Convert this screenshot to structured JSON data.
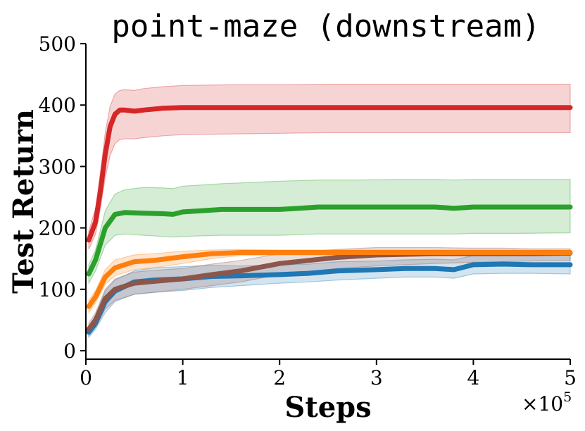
{
  "chart_data": {
    "type": "line",
    "title": "point-maze (downstream)",
    "xlabel": "Steps",
    "ylabel": "Test Return",
    "x_multiplier_label": {
      "base": "×10",
      "exponent": "5"
    },
    "xlim": [
      0,
      5
    ],
    "ylim": [
      0,
      500
    ],
    "xticks": [
      0,
      1,
      2,
      3,
      4,
      5
    ],
    "xtick_labels": [
      "0",
      "1",
      "2",
      "3",
      "4",
      "5"
    ],
    "yticks": [
      0,
      100,
      200,
      300,
      400,
      500
    ],
    "ytick_labels": [
      "0",
      "100",
      "200",
      "300",
      "400",
      "500"
    ],
    "grid": false,
    "legend": null,
    "series": [
      {
        "color": "#1f77b4",
        "x": [
          0.03,
          0.1,
          0.2,
          0.3,
          0.5,
          0.7,
          1.0,
          1.3,
          1.6,
          2.0,
          2.3,
          2.6,
          3.0,
          3.3,
          3.6,
          3.8,
          4.0,
          4.3,
          4.6,
          5.0
        ],
        "mean": [
          30,
          45,
          80,
          97,
          112,
          115,
          117,
          121,
          122,
          124,
          126,
          130,
          132,
          134,
          134,
          132,
          140,
          141,
          140,
          140
        ],
        "lower": [
          22,
          35,
          62,
          80,
          92,
          95,
          98,
          103,
          106,
          110,
          112,
          115,
          118,
          120,
          120,
          118,
          125,
          126,
          126,
          125
        ],
        "upper": [
          40,
          58,
          97,
          115,
          130,
          135,
          137,
          139,
          138,
          140,
          141,
          145,
          146,
          148,
          149,
          148,
          155,
          156,
          156,
          156
        ]
      },
      {
        "color": "#8c564b",
        "x": [
          0.03,
          0.1,
          0.2,
          0.3,
          0.5,
          0.7,
          1.0,
          1.3,
          1.6,
          2.0,
          2.3,
          2.6,
          3.0,
          3.3,
          3.6,
          4.0,
          4.3,
          4.6,
          5.0
        ],
        "mean": [
          35,
          50,
          85,
          100,
          110,
          113,
          117,
          124,
          130,
          142,
          147,
          152,
          156,
          157,
          158,
          158,
          158,
          158,
          159
        ],
        "lower": [
          25,
          38,
          68,
          82,
          92,
          95,
          100,
          106,
          112,
          124,
          129,
          134,
          138,
          140,
          142,
          144,
          145,
          146,
          147
        ],
        "upper": [
          45,
          62,
          100,
          117,
          128,
          131,
          134,
          141,
          147,
          158,
          162,
          165,
          168,
          168,
          168,
          167,
          167,
          166,
          166
        ]
      },
      {
        "color": "#ff7f0e",
        "x": [
          0.03,
          0.1,
          0.2,
          0.3,
          0.5,
          0.7,
          1.0,
          1.3,
          1.6,
          2.0,
          2.5,
          3.0,
          3.5,
          4.0,
          4.5,
          5.0
        ],
        "mean": [
          72,
          88,
          120,
          135,
          145,
          147,
          153,
          158,
          160,
          160,
          160,
          160,
          160,
          160,
          160,
          160
        ],
        "lower": [
          62,
          78,
          108,
          122,
          132,
          135,
          142,
          150,
          155,
          156,
          156,
          156,
          156,
          156,
          156,
          157
        ],
        "upper": [
          82,
          98,
          132,
          148,
          156,
          158,
          162,
          164,
          165,
          164,
          164,
          164,
          164,
          164,
          164,
          164
        ]
      },
      {
        "color": "#2ca02c",
        "x": [
          0.03,
          0.1,
          0.2,
          0.3,
          0.4,
          0.6,
          0.8,
          0.9,
          1.0,
          1.2,
          1.4,
          1.7,
          2.0,
          2.2,
          2.4,
          2.8,
          3.2,
          3.6,
          3.8,
          4.0,
          4.5,
          5.0
        ],
        "mean": [
          125,
          148,
          200,
          222,
          225,
          224,
          223,
          222,
          226,
          228,
          230,
          230,
          230,
          232,
          234,
          234,
          234,
          234,
          232,
          234,
          234,
          234
        ],
        "lower": [
          110,
          130,
          172,
          188,
          190,
          188,
          186,
          185,
          186,
          187,
          188,
          188,
          188,
          189,
          190,
          190,
          190,
          190,
          190,
          191,
          191,
          192
        ],
        "upper": [
          140,
          165,
          228,
          255,
          262,
          266,
          265,
          264,
          268,
          270,
          272,
          274,
          276,
          277,
          278,
          278,
          279,
          279,
          278,
          279,
          279,
          279
        ]
      },
      {
        "color": "#d62728",
        "x": [
          0.03,
          0.1,
          0.15,
          0.2,
          0.25,
          0.3,
          0.35,
          0.4,
          0.5,
          0.6,
          0.8,
          1.0,
          1.5,
          2.0,
          2.5,
          3.0,
          3.5,
          4.0,
          4.5,
          5.0
        ],
        "mean": [
          180,
          210,
          260,
          320,
          365,
          385,
          392,
          392,
          390,
          392,
          395,
          396,
          396,
          396,
          396,
          396,
          396,
          396,
          396,
          396
        ],
        "lower": [
          165,
          190,
          232,
          282,
          318,
          337,
          344,
          345,
          345,
          347,
          350,
          352,
          353,
          354,
          355,
          355,
          355,
          355,
          355,
          355
        ],
        "upper": [
          195,
          232,
          290,
          355,
          398,
          418,
          424,
          425,
          424,
          427,
          430,
          432,
          433,
          433,
          434,
          434,
          434,
          434,
          434,
          434
        ]
      }
    ]
  }
}
